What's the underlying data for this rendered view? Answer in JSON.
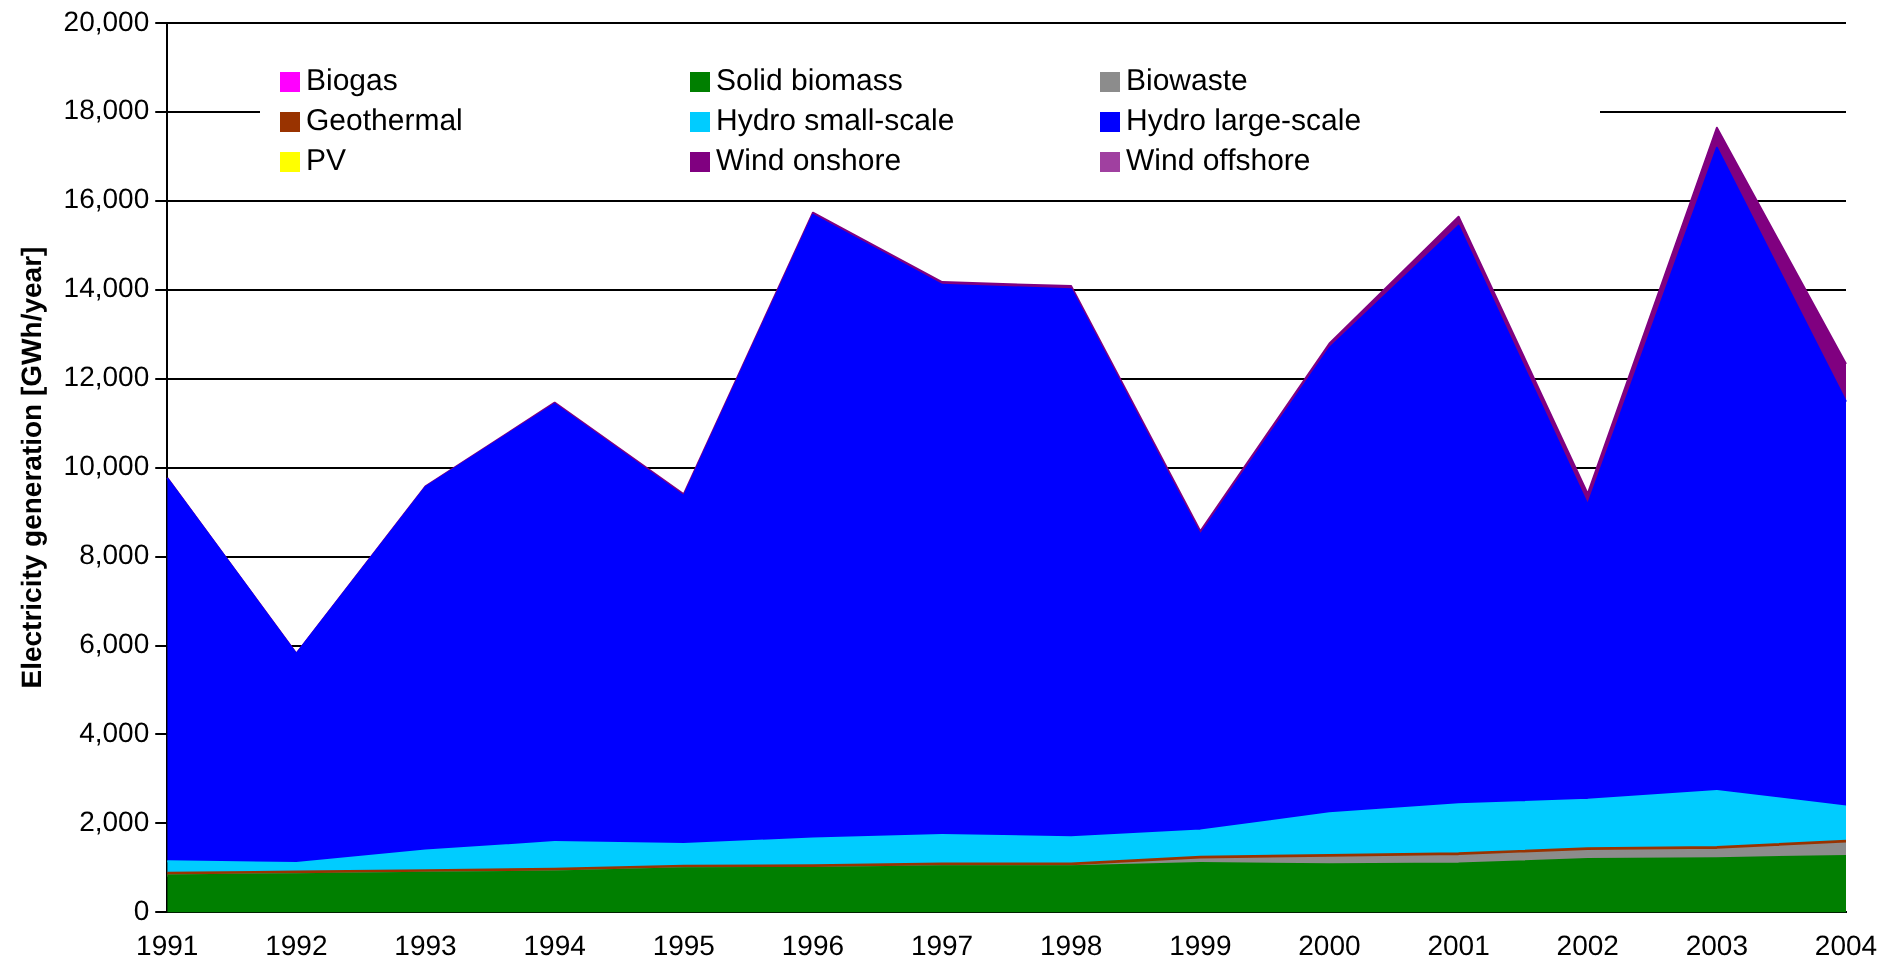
{
  "chart_data": {
    "type": "area",
    "stacked": true,
    "ylabel": "Electricity generation [GWh/year]",
    "categories": [
      "1991",
      "1992",
      "1993",
      "1994",
      "1995",
      "1996",
      "1997",
      "1998",
      "1999",
      "2000",
      "2001",
      "2002",
      "2003",
      "2004"
    ],
    "ylim": [
      0,
      20000
    ],
    "yticks": [
      {
        "value": 0,
        "label": "0"
      },
      {
        "value": 2000,
        "label": "2,000"
      },
      {
        "value": 4000,
        "label": "4,000"
      },
      {
        "value": 6000,
        "label": "6,000"
      },
      {
        "value": 8000,
        "label": "8,000"
      },
      {
        "value": 10000,
        "label": "10,000"
      },
      {
        "value": 12000,
        "label": "12,000"
      },
      {
        "value": 14000,
        "label": "14,000"
      },
      {
        "value": 16000,
        "label": "16,000"
      },
      {
        "value": 18000,
        "label": "18,000"
      },
      {
        "value": 20000,
        "label": "20,000"
      }
    ],
    "grid": "y",
    "legend": "top",
    "series": [
      {
        "name": "Biogas",
        "color": "#ff00ff",
        "values": [
          null,
          null,
          null,
          null,
          null,
          null,
          null,
          null,
          null,
          null,
          null,
          null,
          null,
          null
        ]
      },
      {
        "name": "Solid biomass",
        "color": "#007f00",
        "values": [
          830,
          860,
          890,
          920,
          990,
          1000,
          1040,
          1040,
          1110,
          1080,
          1100,
          1200,
          1220,
          1270
        ]
      },
      {
        "name": "Biowaste",
        "color": "#8c8c8c",
        "values": [
          0,
          0,
          0,
          0,
          0,
          0,
          0,
          0,
          80,
          150,
          170,
          180,
          190,
          280
        ]
      },
      {
        "name": "Geothermal",
        "color": "#993300",
        "values": [
          60,
          60,
          60,
          60,
          60,
          60,
          60,
          60,
          60,
          60,
          60,
          60,
          60,
          60
        ]
      },
      {
        "name": "Hydro small-scale",
        "color": "#00ccff",
        "values": [
          260,
          190,
          440,
          600,
          490,
          600,
          640,
          590,
          590,
          940,
          1100,
          1090,
          1260,
          770
        ]
      },
      {
        "name": "Hydro large-scale",
        "color": "#0000ff",
        "values": [
          8610,
          4700,
          8170,
          9850,
          7820,
          14020,
          12370,
          12320,
          6650,
          10460,
          13010,
          6630,
          14460,
          9100
        ]
      },
      {
        "name": "PV",
        "color": "#ffff00",
        "values": [
          null,
          null,
          null,
          null,
          null,
          null,
          null,
          null,
          null,
          null,
          null,
          null,
          null,
          null
        ]
      },
      {
        "name": "Wind onshore",
        "color": "#800080",
        "values": [
          10,
          10,
          20,
          30,
          40,
          50,
          60,
          70,
          80,
          100,
          200,
          250,
          450,
          850
        ]
      },
      {
        "name": "Wind offshore",
        "color": "#a040a0",
        "values": [
          null,
          null,
          null,
          null,
          null,
          null,
          null,
          null,
          null,
          null,
          null,
          null,
          null,
          null
        ]
      }
    ]
  }
}
